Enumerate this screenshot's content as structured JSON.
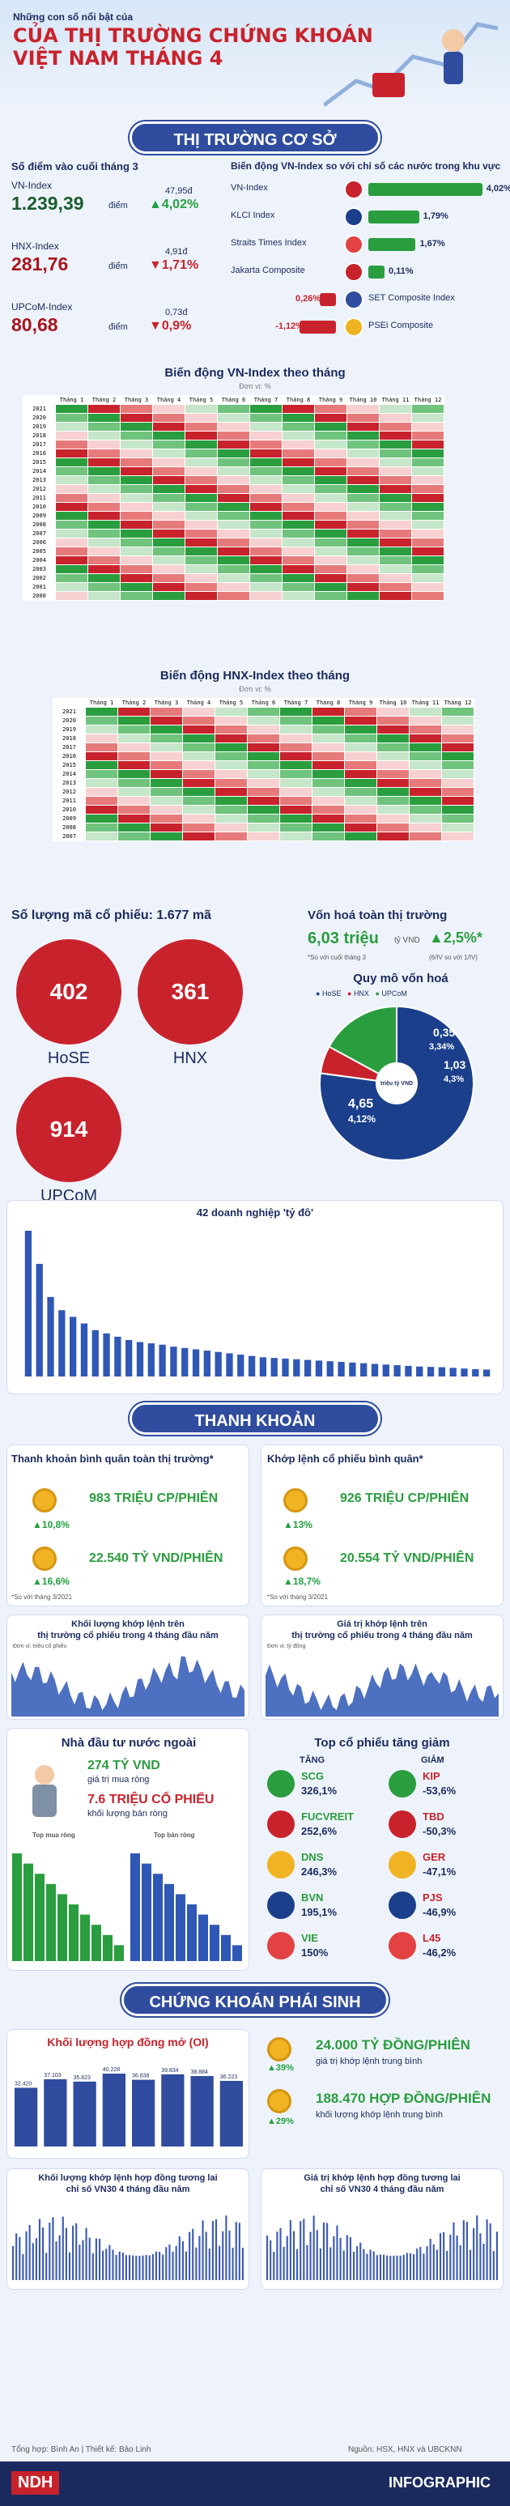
{
  "header": {
    "pre": "Những con số nổi bật của",
    "title1": "CỦA THỊ TRƯỜNG CHỨNG KHOÁN",
    "title2": "VIỆT NAM THÁNG 4"
  },
  "sec1": "THỊ TRƯỜNG CƠ SỞ",
  "left_title": "Số điểm vào cuối tháng 3",
  "indices": [
    {
      "name": "VN-Index",
      "value": "1.239,39",
      "unit": "điểm",
      "change_abs": "47,95đ",
      "change_pct": "4,02%",
      "dir": "up"
    },
    {
      "name": "HNX-Index",
      "value": "281,76",
      "unit": "điểm",
      "change_abs": "4,91đ",
      "change_pct": "1,71%",
      "dir": "down"
    },
    {
      "name": "UPCoM-Index",
      "value": "80,68",
      "unit": "điểm",
      "change_abs": "0,73đ",
      "change_pct": "0,9%",
      "dir": "down"
    }
  ],
  "right_title": "Biến động VN-Index so với chỉ số các nước trong khu vực",
  "regional": [
    {
      "name": "VN-Index",
      "value": "4,02%",
      "side": "right",
      "color": "#2a9d3e"
    },
    {
      "name": "KLCI Index",
      "value": "1,79%",
      "side": "right",
      "color": "#2a9d3e"
    },
    {
      "name": "Straits Times Index",
      "value": "1,67%",
      "side": "right",
      "color": "#2a9d3e"
    },
    {
      "name": "Jakarta Composite",
      "value": "0,11%",
      "side": "right",
      "color": "#2a9d3e"
    },
    {
      "name": "SET Composite Index",
      "value": "0,26%",
      "side": "left",
      "color": "#c8232c"
    },
    {
      "name": "PSEi Composite",
      "value": "-1,12%",
      "side": "left",
      "color": "#c8232c"
    }
  ],
  "vn_heat": {
    "title": "Biến động VN-Index theo tháng",
    "sub": "Đơn vị: %",
    "months": [
      "Tháng 1",
      "Tháng 2",
      "Tháng 3",
      "Tháng 4",
      "Tháng 5",
      "Tháng 6",
      "Tháng 7",
      "Tháng 8",
      "Tháng 9",
      "Tháng 10",
      "Tháng 11",
      "Tháng 12"
    ],
    "years": [
      "2021",
      "2020",
      "2019",
      "2018",
      "2017",
      "2016",
      "2015",
      "2014",
      "2013",
      "2012",
      "2011",
      "2010",
      "2009",
      "2008",
      "2007",
      "2006",
      "2005",
      "2004",
      "2003",
      "2002",
      "2001",
      "2000"
    ]
  },
  "hnx_heat": {
    "title": "Biến động HNX-Index theo tháng",
    "sub": "Đơn vị: %",
    "years": [
      "2021",
      "2020",
      "2019",
      "2018",
      "2017",
      "2016",
      "2015",
      "2014",
      "2013",
      "2012",
      "2011",
      "2010",
      "2009",
      "2008",
      "2007"
    ]
  },
  "count": {
    "title": "Số lượng mã cổ phiếu:",
    "total": "1.677 mã",
    "items": [
      {
        "n": "402",
        "label": "HoSE"
      },
      {
        "n": "361",
        "label": "HNX"
      },
      {
        "n": "914",
        "label": "UPCoM"
      }
    ]
  },
  "cap": {
    "title": "Vốn hoá toàn thị trường",
    "value": "6,03 triệu",
    "value_unit": "tỷ VND",
    "pct": "2,5%*",
    "note1": "*So với cuối tháng 3",
    "note2": "(6/IV so với 1/IV)",
    "pie_title": "Quy mô vốn hoá",
    "legend": [
      "HoSE",
      "HNX",
      "UPCoM"
    ],
    "slices": [
      {
        "label": "HoSE",
        "value": 4.65,
        "pct": "4,12%",
        "color": "#1b3f8b"
      },
      {
        "label": "HNX",
        "value": 0.35,
        "pct": "3,34%",
        "color": "#c8232c"
      },
      {
        "label": "UPCoM",
        "value": 1.03,
        "pct": "4,3%",
        "color": "#2a9d3e"
      }
    ],
    "center": "triệu tỷ VND",
    "v1": "4,65",
    "v2": "0,35",
    "v3": "1,03"
  },
  "chart_data": {
    "type": "bar",
    "title": "42 doanh nghiệp 'tỷ đô'",
    "values": [
      22,
      17,
      12,
      10,
      9,
      8,
      7,
      6.5,
      6,
      5.5,
      5.2,
      5,
      4.8,
      4.5,
      4.3,
      4.1,
      3.9,
      3.7,
      3.5,
      3.3,
      3.1,
      2.9,
      2.8,
      2.7,
      2.6,
      2.5,
      2.4,
      2.3,
      2.2,
      2.1,
      2,
      1.9,
      1.8,
      1.7,
      1.6,
      1.5,
      1.45,
      1.4,
      1.3,
      1.2,
      1.1,
      1.05
    ],
    "color": "#2f57b5"
  },
  "sec2": "THANH KHOẢN",
  "liq": {
    "avg_title": "Thanh khoản bình quân toàn thị trường*",
    "avg_vol": "983 TRIỆU CP/PHIÊN",
    "avg_vol_pct": "10,8%",
    "avg_val": "22.540 TỶ VND/PHIÊN",
    "avg_val_pct": "16,6%",
    "avg_note": "*So với tháng 3/2021",
    "match_title": "Khớp lệnh cổ phiếu bình quân*",
    "match_vol": "926 TRIỆU CP/PHIÊN",
    "match_vol_pct": "13%",
    "match_val": "20.554 TỶ VND/PHIÊN",
    "match_val_pct": "18,7%",
    "match_note": "*So với tháng 3/2021",
    "c1_title": "Khối lượng khớp lệnh trên",
    "c1_title2": "thị trường cổ phiếu trong 4 tháng đầu năm",
    "c1_unit": "Đơn vị: triệu cổ phiếu",
    "c2_title": "Giá trị khớp lệnh trên",
    "c2_title2": "thị trường cổ phiếu trong 4 tháng đầu năm",
    "c2_unit": "Đơn vị: tỷ đồng"
  },
  "foreign": {
    "title": "Nhà đầu tư nước ngoài",
    "buy": "274 TỶ VND",
    "buy_label": "giá trị mua ròng",
    "sell": "7.6 TRIỆU CỔ PHIẾU",
    "sell_label": "khối lượng bán ròng",
    "t1": "Top mua ròng",
    "t2": "Top bán ròng"
  },
  "top": {
    "title": "Top cổ phiếu tăng giảm",
    "up_label": "TĂNG",
    "down_label": "GIẢM",
    "up": [
      {
        "code": "SCG",
        "pct": "326,1%"
      },
      {
        "code": "FUCVREIT",
        "pct": "252,6%"
      },
      {
        "code": "DNS",
        "pct": "246,3%"
      },
      {
        "code": "BVN",
        "pct": "195,1%"
      },
      {
        "code": "VIE",
        "pct": "150%"
      }
    ],
    "down": [
      {
        "code": "KIP",
        "pct": "-53,6%"
      },
      {
        "code": "TBD",
        "pct": "-50,3%"
      },
      {
        "code": "GER",
        "pct": "-47,1%"
      },
      {
        "code": "PJS",
        "pct": "-46,9%"
      },
      {
        "code": "L45",
        "pct": "-46,2%"
      }
    ]
  },
  "sec3": "CHỨNG KHOÁN PHÁI SINH",
  "deriv": {
    "oi_title": "Khối lượng hợp đồng mở (OI)",
    "oi_labels": [
      "32.420",
      "37.103",
      "35.823",
      "40.228",
      "36.838",
      "39.834",
      "38.884",
      "36.223"
    ],
    "vol": "24.000 TỶ ĐỒNG/PHIÊN",
    "vol_pct": "39%",
    "vol_label": "giá trị khớp lệnh trung bình",
    "qty": "188.470 HỢP ĐỒNG/PHIÊN",
    "qty_pct": "29%",
    "qty_label": "khối lượng khớp lệnh trung bình",
    "c1": "Khối lượng khớp lệnh hợp đồng tương lai",
    "c1b": "chỉ số VN30 4 tháng đầu năm",
    "c2": "Giá trị khớp lệnh hợp đồng tương lai",
    "c2b": "chỉ số VN30 4 tháng đầu năm"
  },
  "footer": {
    "credit": "Tổng hợp: Bình An | Thiết kế: Bảo Linh",
    "source": "Nguồn: HSX, HNX và UBCKNN",
    "logo": "NDH",
    "tag": "INFOGRAPHIC"
  }
}
